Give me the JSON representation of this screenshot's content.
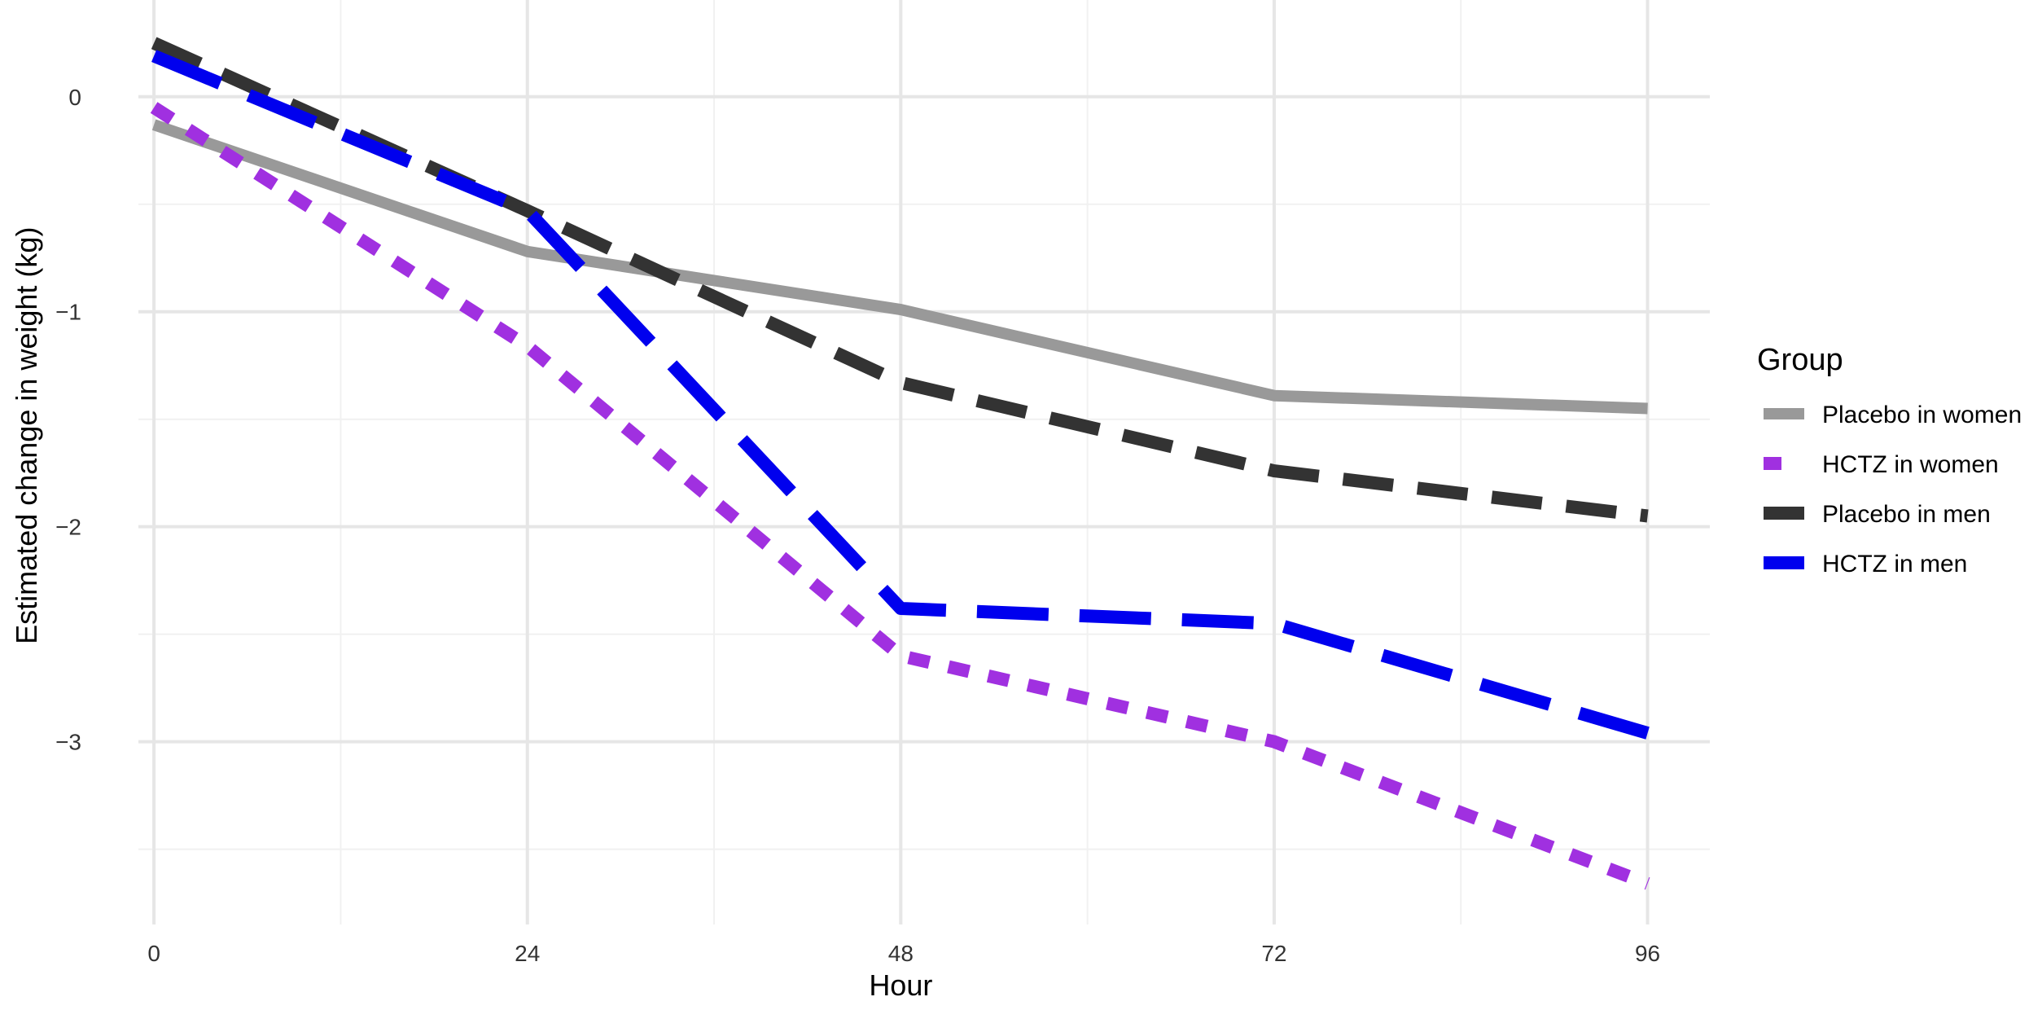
{
  "chart_data": {
    "type": "line",
    "xlabel": "Hour",
    "ylabel": "Estimated change in weight (kg)",
    "x": [
      0,
      24,
      48,
      72,
      96
    ],
    "x_ticks": [
      "0",
      "24",
      "48",
      "72",
      "96"
    ],
    "y_ticks": [
      "0",
      "−1",
      "−2",
      "−3"
    ],
    "y_tick_values": [
      0,
      -1,
      -2,
      -3
    ],
    "xlim": [
      -1,
      100
    ],
    "ylim": [
      -3.85,
      0.45
    ],
    "grid": true,
    "legend": {
      "title": "Group",
      "position": "right"
    },
    "series": [
      {
        "name": "Placebo in women",
        "values": [
          -0.13,
          -0.72,
          -0.99,
          -1.39,
          -1.45
        ],
        "color": "#999999",
        "line_style": "solid"
      },
      {
        "name": "HCTZ in women",
        "values": [
          -0.05,
          -1.16,
          -2.6,
          -3.0,
          -3.66
        ],
        "color": "#a030e0",
        "line_style": "dotted"
      },
      {
        "name": "Placebo in men",
        "values": [
          0.25,
          -0.53,
          -1.33,
          -1.74,
          -1.95
        ],
        "color": "#333333",
        "line_style": "dashed"
      },
      {
        "name": "HCTZ in men",
        "values": [
          0.19,
          -0.53,
          -2.38,
          -2.45,
          -2.96
        ],
        "color": "#0000ee",
        "line_style": "longdash"
      }
    ]
  }
}
